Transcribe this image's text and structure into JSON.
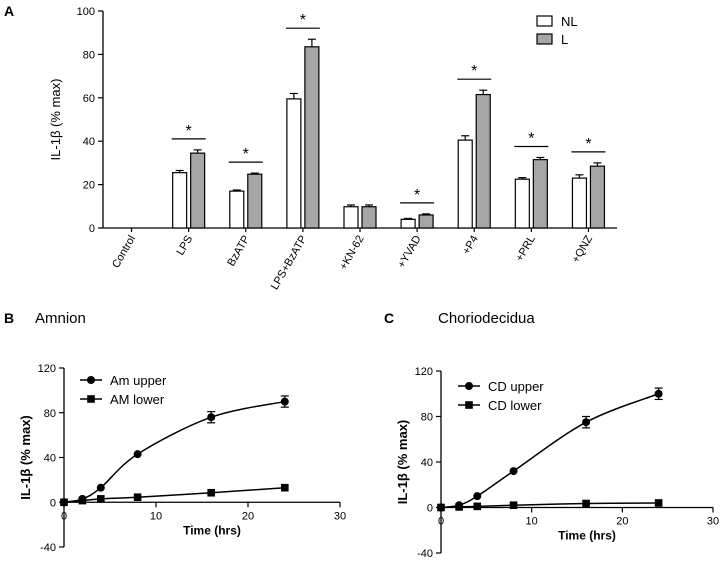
{
  "panel_labels": {
    "a": "A",
    "b": "B",
    "c": "C"
  },
  "significance_mark": "*",
  "chart_data": [
    {
      "panel": "A",
      "type": "bar",
      "title": "",
      "xlabel": "",
      "ylabel": "IL-1β (% max)",
      "ylim": [
        0,
        100
      ],
      "yticks": [
        0,
        20,
        40,
        60,
        80,
        100
      ],
      "categories": [
        "Control",
        "LPS",
        "BzATP",
        "LPS+BzATP",
        "+KN-62",
        "+YVAD",
        "+P4",
        "+PRL",
        "+QNZ"
      ],
      "series": [
        {
          "name": "NL",
          "color": "#ffffff",
          "values": [
            0,
            25.5,
            17,
            59.5,
            9.8,
            4,
            40.5,
            22.5,
            23
          ],
          "errors": [
            0,
            1,
            0.5,
            2.5,
            0.8,
            0.4,
            2,
            0.7,
            1.5
          ]
        },
        {
          "name": "L",
          "color": "#a6a6a6",
          "values": [
            0,
            34.5,
            24.8,
            83.5,
            9.8,
            6,
            61.5,
            31.5,
            28.5
          ],
          "errors": [
            0,
            1.5,
            0.5,
            3.5,
            0.8,
            0.5,
            2,
            1,
            1.5
          ]
        }
      ],
      "significant": [
        false,
        true,
        true,
        true,
        false,
        true,
        true,
        true,
        true
      ],
      "legend": "top-right"
    },
    {
      "panel": "B",
      "type": "line",
      "title": "Amnion",
      "xlabel": "Time (hrs)",
      "ylabel": "IL-1β (% max)",
      "xlim": [
        0,
        30
      ],
      "ylim": [
        -40,
        120
      ],
      "xticks": [
        0,
        10,
        20,
        30
      ],
      "yticks": [
        -40,
        0,
        40,
        80,
        120
      ],
      "series": [
        {
          "name": "Am upper",
          "marker": "circle",
          "x": [
            0,
            2,
            4,
            8,
            16,
            24
          ],
          "y": [
            0,
            3,
            13,
            43,
            76,
            90
          ],
          "errors": [
            0,
            0.5,
            1,
            1.5,
            5,
            5
          ]
        },
        {
          "name": "AM lower",
          "marker": "square",
          "x": [
            0,
            2,
            4,
            8,
            16,
            24
          ],
          "y": [
            0,
            1.5,
            3,
            4.5,
            8.5,
            13
          ],
          "errors": [
            0,
            0.3,
            0.4,
            0.5,
            0.8,
            1
          ]
        }
      ],
      "legend": "top-left"
    },
    {
      "panel": "C",
      "type": "line",
      "title": "Choriodecidua",
      "xlabel": "Time (hrs)",
      "ylabel": "IL-1β (% max)",
      "xlim": [
        0,
        30
      ],
      "ylim": [
        -40,
        120
      ],
      "xticks": [
        0,
        10,
        20,
        30
      ],
      "yticks": [
        -40,
        0,
        40,
        80,
        120
      ],
      "series": [
        {
          "name": "CD upper",
          "marker": "circle",
          "x": [
            0,
            2,
            4,
            8,
            16,
            24
          ],
          "y": [
            0,
            2,
            10,
            32,
            75,
            100
          ],
          "errors": [
            0,
            0.5,
            1,
            1.5,
            5,
            5
          ]
        },
        {
          "name": "CD lower",
          "marker": "square",
          "x": [
            0,
            2,
            4,
            8,
            16,
            24
          ],
          "y": [
            0,
            0.5,
            1,
            2,
            3.5,
            4
          ],
          "errors": [
            0,
            0.2,
            0.3,
            0.3,
            0.4,
            0.5
          ]
        }
      ],
      "legend": "top-left"
    }
  ]
}
